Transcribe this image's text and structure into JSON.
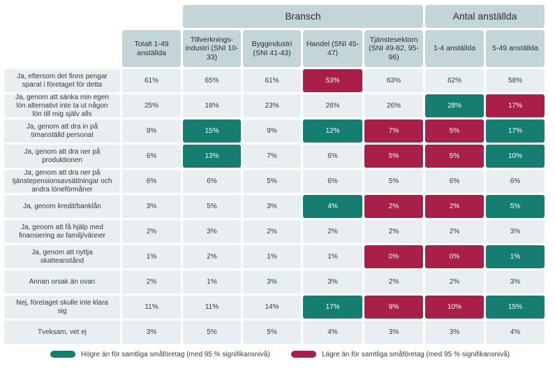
{
  "chart_data": {
    "type": "table",
    "column_groups": [
      {
        "label": "Bransch",
        "span": [
          1,
          4
        ]
      },
      {
        "label": "Antal anställda",
        "span": [
          5,
          6
        ]
      }
    ],
    "columns": [
      "Totalt 1-49 anställda",
      "Tillverknings-industri (SNI 10-33)",
      "Byggindustri (SNI 41-43)",
      "Handel (SNI 45-47)",
      "Tjänstesektorn (SNI 49-82, 95-96)",
      "1-4 anställda",
      "5-49 anställda"
    ],
    "rows": [
      {
        "label": "Ja, eftersom det finns pengar sparat i företaget för detta",
        "values": [
          "61%",
          "65%",
          "61%",
          "53%",
          "63%",
          "62%",
          "58%"
        ],
        "flags": [
          "",
          "",
          "",
          "lo",
          "",
          "",
          ""
        ]
      },
      {
        "label": "Ja, genom att sänka min egen lön alternativt inte ta ut någon lön till mig själv alls",
        "values": [
          "25%",
          "18%",
          "23%",
          "26%",
          "26%",
          "28%",
          "17%"
        ],
        "flags": [
          "",
          "",
          "",
          "",
          "",
          "hi",
          "lo"
        ]
      },
      {
        "label": "Ja, genom att dra in på timanställd personal",
        "values": [
          "9%",
          "15%",
          "9%",
          "12%",
          "7%",
          "5%",
          "17%"
        ],
        "flags": [
          "",
          "hi",
          "",
          "hi",
          "lo",
          "lo",
          "hi"
        ]
      },
      {
        "label": "Ja, genom att dra ner på produktionen",
        "values": [
          "6%",
          "13%",
          "7%",
          "6%",
          "5%",
          "5%",
          "10%"
        ],
        "flags": [
          "",
          "hi",
          "",
          "",
          "lo",
          "lo",
          "hi"
        ]
      },
      {
        "label": "Ja, genom att dra ner på tjänstepensionsavsättningar och andra löneförmåner",
        "values": [
          "6%",
          "6%",
          "5%",
          "6%",
          "5%",
          "6%",
          "6%"
        ],
        "flags": [
          "",
          "",
          "",
          "",
          "",
          "",
          ""
        ]
      },
      {
        "label": "Ja, genom kredit/banklån",
        "values": [
          "3%",
          "5%",
          "3%",
          "4%",
          "2%",
          "2%",
          "5%"
        ],
        "flags": [
          "",
          "",
          "",
          "hi",
          "lo",
          "lo",
          "hi"
        ]
      },
      {
        "label": "Ja, genom att få hjälp med finansiering av familj/vänner",
        "values": [
          "2%",
          "3%",
          "2%",
          "2%",
          "2%",
          "2%",
          "3%"
        ],
        "flags": [
          "",
          "",
          "",
          "",
          "",
          "",
          ""
        ]
      },
      {
        "label": "Ja, genom att nyttja skatteanstånd",
        "values": [
          "1%",
          "2%",
          "1%",
          "1%",
          "0%",
          "0%",
          "1%"
        ],
        "flags": [
          "",
          "",
          "",
          "",
          "lo",
          "lo",
          "hi"
        ]
      },
      {
        "label": "Annan orsak än ovan",
        "values": [
          "2%",
          "1%",
          "3%",
          "3%",
          "2%",
          "2%",
          "3%"
        ],
        "flags": [
          "",
          "",
          "",
          "",
          "",
          "",
          ""
        ]
      },
      {
        "label": "Nej, företaget skulle inte klara sig",
        "values": [
          "11%",
          "11%",
          "14%",
          "17%",
          "9%",
          "10%",
          "15%"
        ],
        "flags": [
          "",
          "",
          "",
          "hi",
          "lo",
          "lo",
          "hi"
        ]
      },
      {
        "label": "Tveksam, vet ej",
        "values": [
          "3%",
          "5%",
          "5%",
          "4%",
          "3%",
          "3%",
          "4%"
        ],
        "flags": [
          "",
          "",
          "",
          "",
          "",
          "",
          ""
        ]
      }
    ],
    "legend": [
      {
        "key": "hi",
        "label": "Högre än för samtliga småföretag (med 95 % signifikansnivå)",
        "color": "#157e71"
      },
      {
        "key": "lo",
        "label": "Lägre än för samtliga småföretag (med 95 % signifikansnivå)",
        "color": "#a8204a"
      }
    ]
  },
  "colors": {
    "header_bg": "#c3d5d7",
    "cell_bg": "#e9eef0",
    "higher": "#157e71",
    "lower": "#a8204a"
  }
}
